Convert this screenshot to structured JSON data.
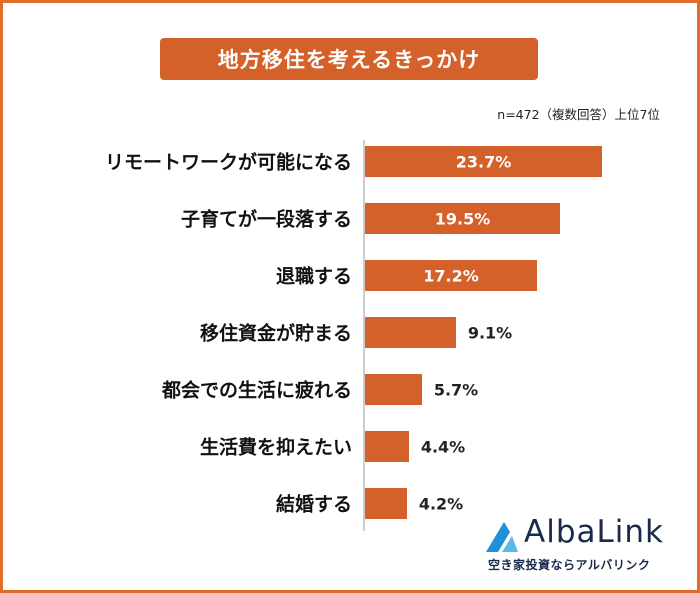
{
  "chart_data": {
    "type": "bar",
    "orientation": "horizontal",
    "title": "地方移住を考えるきっかけ",
    "note": "n=472（複数回答）上位7位",
    "categories": [
      "リモートワークが可能になる",
      "子育てが一段落する",
      "退職する",
      "移住資金が貯まる",
      "都会での生活に疲れる",
      "生活費を抑えたい",
      "結婚する"
    ],
    "values": [
      23.7,
      19.5,
      17.2,
      9.1,
      5.7,
      4.4,
      4.2
    ],
    "value_labels": [
      "23.7%",
      "19.5%",
      "17.2%",
      "9.1%",
      "5.7%",
      "4.4%",
      "4.2%"
    ],
    "xlim": [
      0,
      25
    ],
    "grid": false,
    "bar_color": "#d4612a"
  },
  "branding": {
    "logo_text": "AlbaLink",
    "tagline": "空き家投資ならアルバリンク",
    "accent": "#1e90d8"
  },
  "colors": {
    "border": "#e06c2b",
    "title_bg": "#d4612a"
  }
}
